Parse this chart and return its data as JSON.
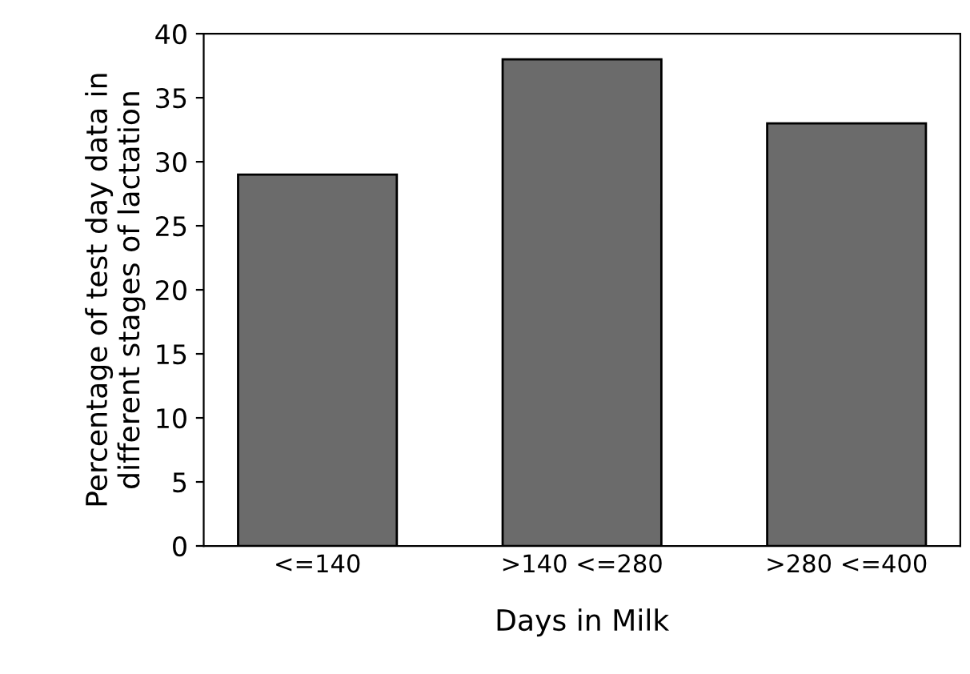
{
  "chart_data": {
    "type": "bar",
    "xlabel": "Days in Milk",
    "ylabel": "Percentage of test day data in\ndifferent stages of lactation",
    "categories": [
      "<=140",
      ">140 <=280",
      ">280 <=400"
    ],
    "values": [
      29,
      38,
      33
    ],
    "color": "#6b6b6b",
    "ylim": [
      0,
      40
    ],
    "yticks": [
      0,
      5,
      10,
      15,
      20,
      25,
      30,
      35,
      40
    ],
    "grid": false,
    "legend": false
  }
}
